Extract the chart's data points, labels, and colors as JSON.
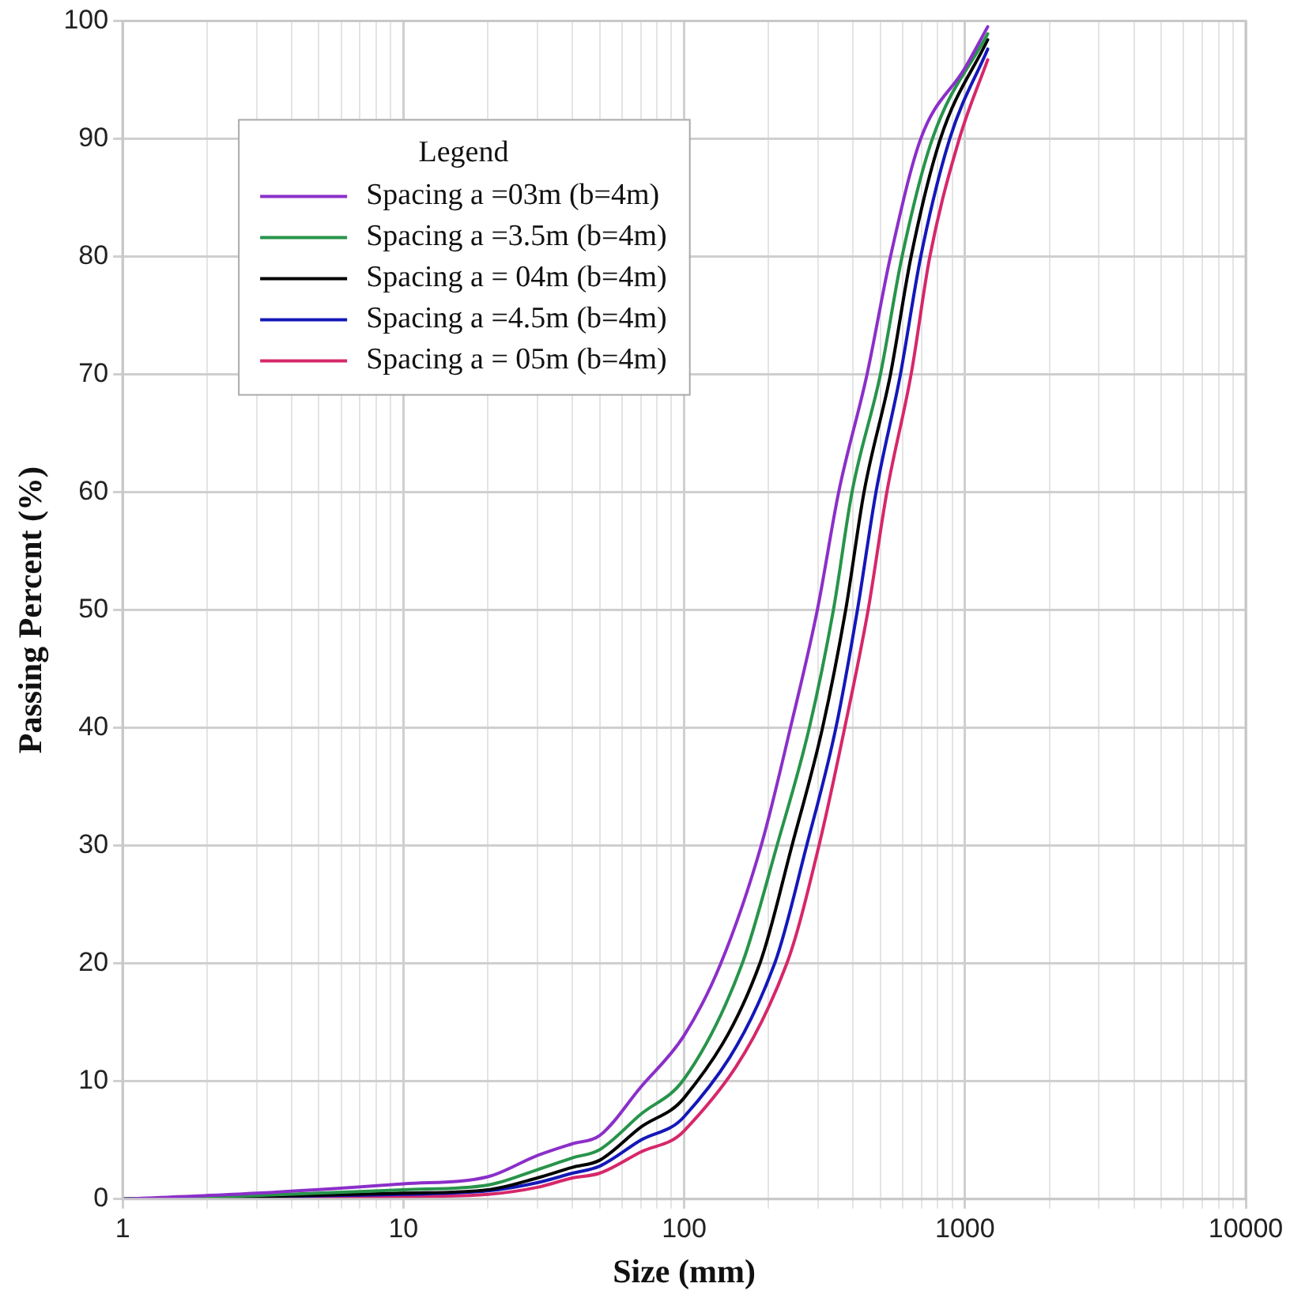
{
  "chart_data": {
    "type": "line",
    "xlabel": "Size (mm)",
    "ylabel": "Passing Percent (%)",
    "legend_title": "Legend",
    "legend": "top left",
    "grid": true,
    "log": "x",
    "marker": "none",
    "line_style": "solid",
    "xlim": [
      1,
      10000
    ],
    "ylim": [
      0,
      100
    ],
    "xticks": [
      1,
      {
        "value": 2,
        "label": null
      },
      {
        "value": 3,
        "label": null
      },
      {
        "value": 4,
        "label": null
      },
      {
        "value": 5,
        "label": null
      },
      {
        "value": 6,
        "label": null
      },
      {
        "value": 7,
        "label": null
      },
      {
        "value": 8,
        "label": null
      },
      {
        "value": 9,
        "label": null
      },
      10,
      {
        "value": 20,
        "label": null
      },
      {
        "value": 30,
        "label": null
      },
      {
        "value": 40,
        "label": null
      },
      {
        "value": 50,
        "label": null
      },
      {
        "value": 60,
        "label": null
      },
      {
        "value": 70,
        "label": null
      },
      {
        "value": 80,
        "label": null
      },
      {
        "value": 90,
        "label": null
      },
      100,
      {
        "value": 200,
        "label": null
      },
      {
        "value": 300,
        "label": null
      },
      {
        "value": 400,
        "label": null
      },
      {
        "value": 500,
        "label": null
      },
      {
        "value": 600,
        "label": null
      },
      {
        "value": 700,
        "label": null
      },
      {
        "value": 800,
        "label": null
      },
      {
        "value": 900,
        "label": null
      },
      1000,
      {
        "value": 2000,
        "label": null
      },
      {
        "value": 3000,
        "label": null
      },
      {
        "value": 4000,
        "label": null
      },
      {
        "value": 5000,
        "label": null
      },
      {
        "value": 6000,
        "label": null
      },
      {
        "value": 7000,
        "label": null
      },
      {
        "value": 8000,
        "label": null
      },
      {
        "value": 9000,
        "label": null
      },
      10000
    ],
    "yticks": [
      0,
      10,
      20,
      30,
      40,
      50,
      60,
      70,
      80,
      90,
      100
    ],
    "series": [
      {
        "name": "Spacing a =03m (b=4m)",
        "color": "#8b2fc9",
        "x": [
          1,
          3,
          10,
          20,
          30,
          40,
          50,
          70,
          100,
          135,
          188,
          239,
          298,
          355,
          448,
          543,
          696,
          1000,
          1205
        ],
        "values": [
          0,
          0.5,
          1.3,
          1.9,
          3.7,
          4.7,
          5.4,
          9.5,
          13.9,
          20,
          30,
          40,
          50,
          60,
          70,
          80,
          90,
          96,
          99.5
        ]
      },
      {
        "name": "Spacing a =3.5m (b=4m)",
        "color": "#27944a",
        "x": [
          1,
          3,
          10,
          20,
          30,
          40,
          50,
          70,
          100,
          161,
          214,
          279,
          340,
          396,
          500,
          597,
          766,
          1205
        ],
        "values": [
          0,
          0.3,
          0.8,
          1.2,
          2.5,
          3.5,
          4.2,
          7.2,
          10.2,
          20,
          30,
          40,
          50,
          60,
          70,
          80,
          90,
          98.9
        ]
      },
      {
        "name": "Spacing a = 04m (b=4m)",
        "color": "#000000",
        "x": [
          1,
          3,
          10,
          20,
          30,
          40,
          50,
          70,
          100,
          186,
          242,
          311,
          376,
          437,
          543,
          643,
          818,
          1205
        ],
        "values": [
          0,
          0.2,
          0.5,
          0.8,
          1.8,
          2.7,
          3.3,
          6.1,
          8.6,
          20,
          30,
          40,
          50,
          60,
          70,
          80,
          90,
          98.4
        ]
      },
      {
        "name": "Spacing a =4.5m (b=4m)",
        "color": "#1418b8",
        "x": [
          1,
          3,
          10,
          20,
          30,
          40,
          50,
          70,
          100,
          210,
          273,
          347,
          414,
          482,
          589,
          696,
          883,
          1205
        ],
        "values": [
          0,
          0.2,
          0.4,
          0.7,
          1.4,
          2.2,
          2.8,
          5,
          7,
          20,
          30,
          40,
          50,
          60,
          70,
          80,
          90,
          97.6
        ]
      },
      {
        "name": "Spacing a = 05m (b=4m)",
        "color": "#d6276a",
        "x": [
          1,
          3,
          10,
          20,
          30,
          40,
          50,
          70,
          100,
          232,
          302,
          373,
          452,
          527,
          643,
          750,
          955,
          1205
        ],
        "values": [
          0,
          0.1,
          0.2,
          0.4,
          1.0,
          1.8,
          2.2,
          4,
          5.8,
          20,
          30,
          40,
          50,
          60,
          70,
          80,
          90,
          96.7
        ]
      }
    ]
  }
}
